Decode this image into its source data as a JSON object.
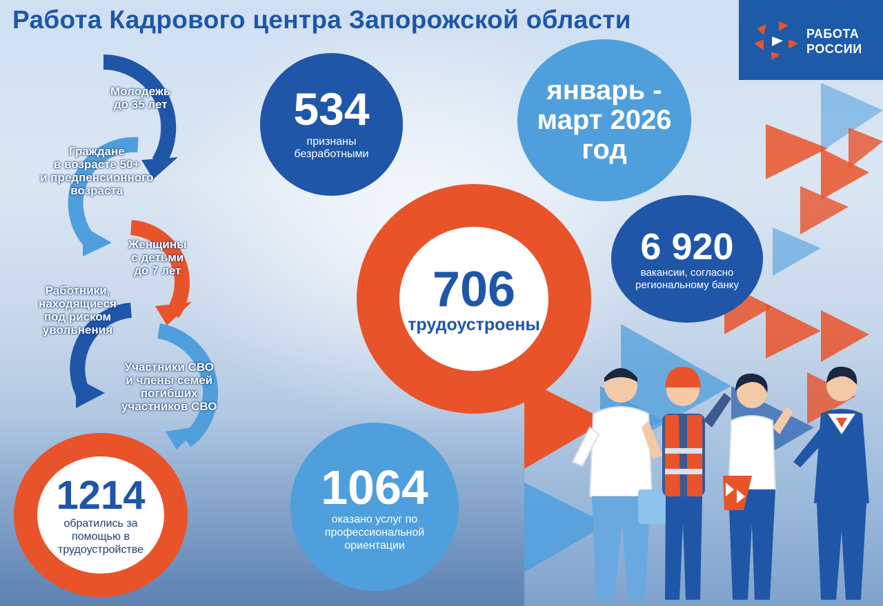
{
  "title": "Работа Кадрового центра Запорожской области",
  "logo": {
    "line1": "РАБОТА",
    "line2": "РОССИИ",
    "color": "#1d5aa8"
  },
  "period": "январь - март 2026 год",
  "stats": {
    "unemployed": {
      "value": "534",
      "label": "признаны безработными"
    },
    "employed": {
      "value": "706",
      "label": "трудоустроены"
    },
    "vacancies": {
      "value": "6 920",
      "label": "вакансии, согласно региональному банку"
    },
    "career_guidance": {
      "value": "1064",
      "label": "оказано услуг по профессиональной ориентации"
    },
    "applied": {
      "value": "1214",
      "label": "обратились за помощью в трудоустройстве"
    }
  },
  "categories": [
    {
      "line1": "Молодежь",
      "line2": "до 35 лет"
    },
    {
      "line1": "Граждане",
      "line2": "в возрасте 50+",
      "line3": "и предпенсионного",
      "line4": "возраста"
    },
    {
      "line1": "Женщины",
      "line2": "с детьми",
      "line3": "до 7 лет"
    },
    {
      "line1": "Работники,",
      "line2": "находящиеся",
      "line3": "под риском",
      "line4": "увольнения"
    },
    {
      "line1": "Участники СВО",
      "line2": "и члены семей",
      "line3": "погибших",
      "line4": "участников СВО"
    }
  ],
  "colors": {
    "dark_blue": "#1f56a8",
    "light_blue": "#4f9fdc",
    "orange": "#e9532a"
  }
}
